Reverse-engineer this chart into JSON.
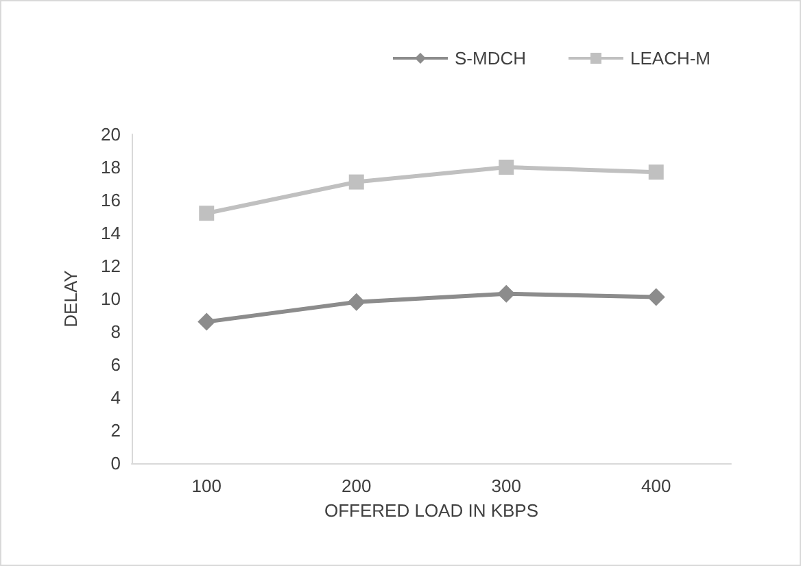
{
  "chart_data": {
    "type": "line",
    "xlabel": "OFFERED LOAD IN KBPS",
    "ylabel": "DELAY",
    "categories": [
      "100",
      "200",
      "300",
      "400"
    ],
    "series": [
      {
        "name": "S-MDCH",
        "color": "#8c8c8c",
        "marker": "diamond",
        "values": [
          8.6,
          9.8,
          10.3,
          10.1
        ]
      },
      {
        "name": "LEACH-M",
        "color": "#c0c0c0",
        "marker": "square",
        "values": [
          15.2,
          17.1,
          18.0,
          17.7
        ]
      }
    ],
    "ylim": [
      0,
      20
    ],
    "yticks": [
      0,
      2,
      4,
      6,
      8,
      10,
      12,
      14,
      16,
      18,
      20
    ],
    "grid": false,
    "legend": "top right",
    "line_style": "solid"
  }
}
